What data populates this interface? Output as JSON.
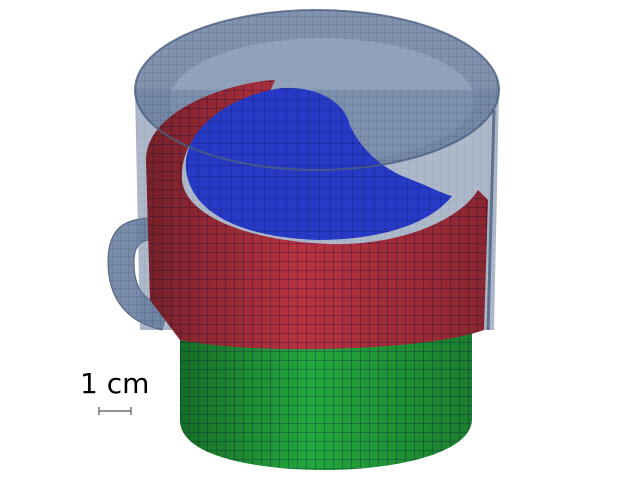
{
  "scale_bar": {
    "label": "1 cm"
  },
  "colors": {
    "outer_mug": "#5d7396",
    "outer_mug_dark": "#3f5474",
    "red_layer": "#b8323f",
    "red_layer_dark": "#8a2330",
    "green_layer": "#23a83a",
    "green_layer_dark": "#187a29",
    "blue_fluid": "#2b3fd6",
    "blue_fluid_dark": "#1f2fa8",
    "mesh_line": "#1d1f66"
  }
}
